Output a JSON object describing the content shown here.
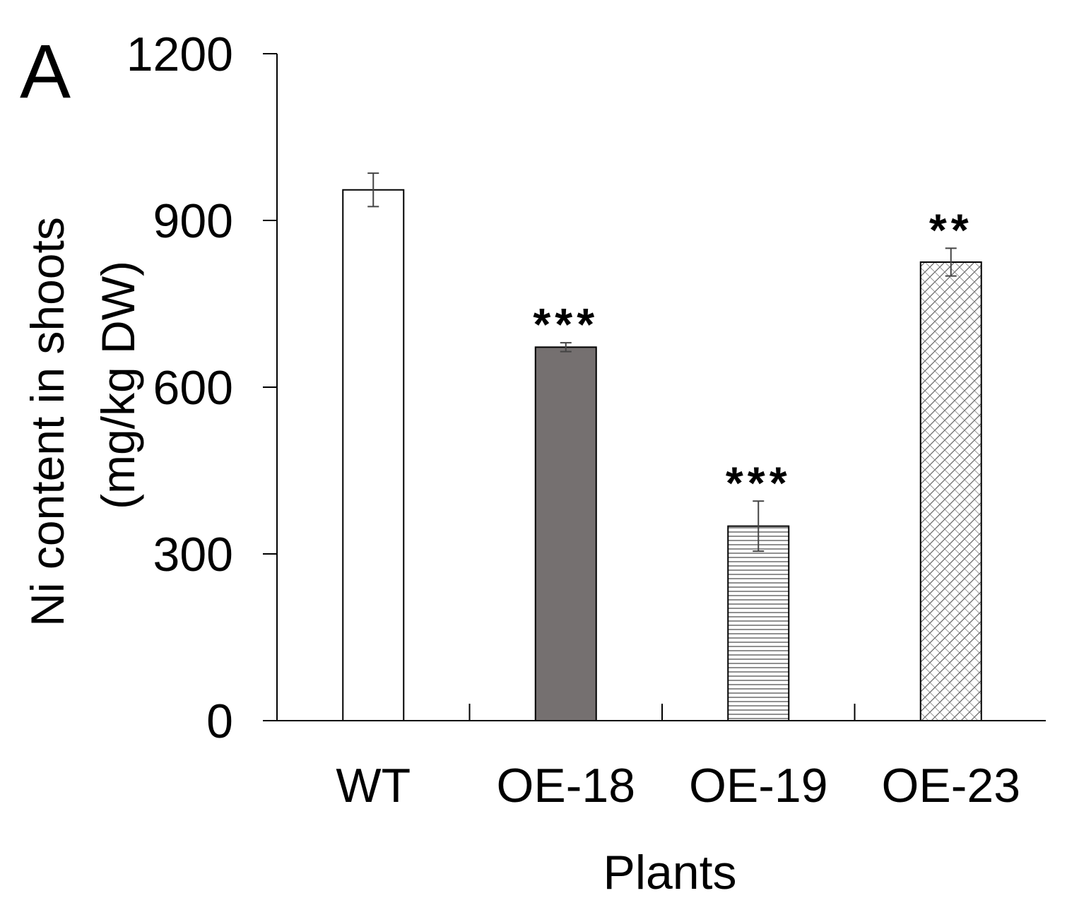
{
  "panel_label": "A",
  "chart_data": {
    "type": "bar",
    "title": "",
    "panel": "A",
    "categories": [
      "WT",
      "OE-18",
      "OE-19",
      "OE-23"
    ],
    "values": [
      955,
      672,
      350,
      825
    ],
    "errors": [
      30,
      8,
      45,
      25
    ],
    "significance": [
      "",
      "***",
      "***",
      "**"
    ],
    "fills": [
      "white",
      "dark-gray",
      "horizontal-lines",
      "crosshatch"
    ],
    "colors": {
      "axis": "#000000",
      "bar_outline": "#000000",
      "dark_fill": "#757070",
      "pattern_line": "#555555",
      "error_bar": "#444444"
    },
    "ylabel_line1": "Ni content in shoots",
    "ylabel_line2": "(mg/kg DW)",
    "xlabel": "Plants",
    "ylim": [
      0,
      1200
    ],
    "yticks": [
      0,
      300,
      600,
      900,
      1200
    ],
    "ytick_labels": [
      "0",
      "300",
      "600",
      "900",
      "1200"
    ],
    "grid": false,
    "legend": "none"
  }
}
